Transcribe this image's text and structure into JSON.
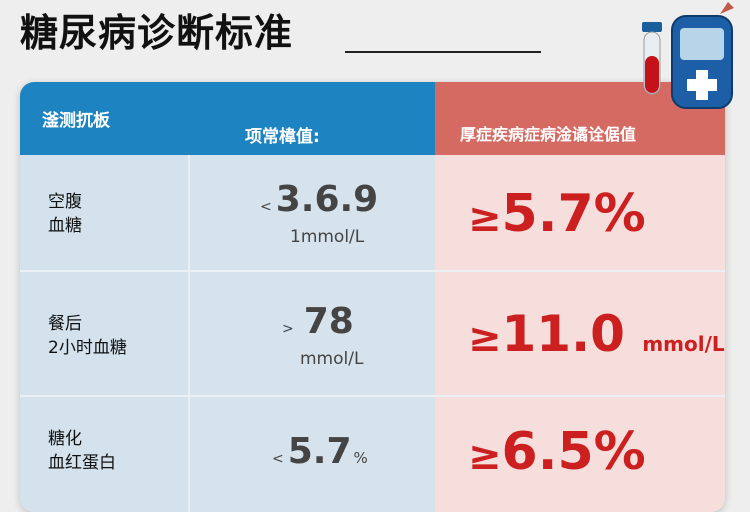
{
  "title": "糖尿病诊断标准",
  "header": {
    "col1": "滏测扤板",
    "col2": "项常椲值:",
    "col3": "厚症疾病症病淦谲诠倨值"
  },
  "rows": [
    {
      "label_line1": "空腹",
      "label_line2": "血糖",
      "normal_prefix": "<",
      "normal_value": "3.6.9",
      "normal_unit": "1mmol/L",
      "diag_prefix": "≥",
      "diag_value": "5.7%",
      "diag_unit": ""
    },
    {
      "label_line1": "餐后",
      "label_line2": "2小时血糖",
      "normal_prefix": ">",
      "normal_value": "78",
      "normal_unit": "mmol/L",
      "diag_prefix": "≥",
      "diag_value": "11.0",
      "diag_unit": "mmol/L"
    },
    {
      "label_line1": "糖化",
      "label_line2": "血红蛋白",
      "normal_prefix": "<",
      "normal_value": "5.7",
      "normal_unit": "%",
      "diag_prefix": "≥",
      "diag_value": "6.5%",
      "diag_unit": ""
    }
  ],
  "colors": {
    "header_blue": "#1e84c1",
    "header_red": "#d46a62",
    "diag_red": "#cc1f1f"
  },
  "icons": [
    "blood-tube-icon",
    "glucose-meter-icon"
  ]
}
